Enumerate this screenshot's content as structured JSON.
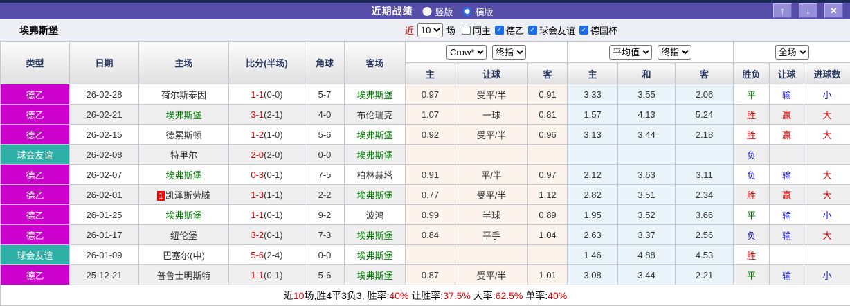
{
  "titlebar": {
    "title": "近期战绩",
    "radios": [
      {
        "label": "竖版",
        "checked": false
      },
      {
        "label": "横版",
        "checked": true
      }
    ],
    "buttons": {
      "up": "↑",
      "down": "↓",
      "close": "✕"
    }
  },
  "filterbar": {
    "team": "埃弗斯堡",
    "recent_label": "近",
    "recent_count": "10",
    "matches_label": "场",
    "checkboxes": [
      {
        "label": "同主",
        "checked": false
      },
      {
        "label": "德乙",
        "checked": true
      },
      {
        "label": "球会友谊",
        "checked": true
      },
      {
        "label": "德国杯",
        "checked": true
      }
    ]
  },
  "table": {
    "headers": {
      "type": "类型",
      "date": "日期",
      "home": "主场",
      "score": "比分(半场)",
      "corner": "角球",
      "away": "客场",
      "group1_select1": "Crow*",
      "group1_select2": "终指",
      "group2_select1": "平均值",
      "group2_select2": "终指",
      "group3_select": "全场",
      "sub": [
        "主",
        "让球",
        "客",
        "主",
        "和",
        "客",
        "胜负",
        "让球",
        "进球数"
      ]
    },
    "rows": [
      {
        "type": "德乙",
        "type_color": "magenta",
        "date": "26-02-28",
        "home": "荷尔斯泰因",
        "home_team": false,
        "home_badge": "",
        "score": "1-1",
        "half": "(0-0)",
        "corner": "5-7",
        "away": "埃弗斯堡",
        "away_team": true,
        "odds1": [
          "0.97",
          "受平/半",
          "0.91"
        ],
        "odds2": [
          "3.33",
          "3.55",
          "2.06"
        ],
        "result": [
          [
            "平",
            "g"
          ],
          [
            "输",
            "b"
          ],
          [
            "小",
            "b"
          ]
        ]
      },
      {
        "type": "德乙",
        "type_color": "magenta",
        "date": "26-02-21",
        "home": "埃弗斯堡",
        "home_team": true,
        "home_badge": "",
        "score": "3-1",
        "half": "(2-1)",
        "corner": "4-0",
        "away": "布伦瑞克",
        "away_team": false,
        "odds1": [
          "1.07",
          "一球",
          "0.81"
        ],
        "odds2": [
          "1.57",
          "4.13",
          "5.24"
        ],
        "result": [
          [
            "胜",
            "r"
          ],
          [
            "赢",
            "r"
          ],
          [
            "大",
            "r"
          ]
        ]
      },
      {
        "type": "德乙",
        "type_color": "magenta",
        "date": "26-02-15",
        "home": "德累斯顿",
        "home_team": false,
        "home_badge": "",
        "score": "1-2",
        "half": "(1-0)",
        "corner": "5-6",
        "away": "埃弗斯堡",
        "away_team": true,
        "odds1": [
          "0.92",
          "受平/半",
          "0.96"
        ],
        "odds2": [
          "3.13",
          "3.44",
          "2.18"
        ],
        "result": [
          [
            "胜",
            "r"
          ],
          [
            "赢",
            "r"
          ],
          [
            "大",
            "r"
          ]
        ]
      },
      {
        "type": "球会友谊",
        "type_color": "teal",
        "date": "26-02-08",
        "home": "特里尔",
        "home_team": false,
        "home_badge": "",
        "score": "2-0",
        "half": "(2-0)",
        "corner": "0-0",
        "away": "埃弗斯堡",
        "away_team": true,
        "odds1": [
          "",
          "",
          ""
        ],
        "odds2": [
          "",
          "",
          ""
        ],
        "result": [
          [
            "负",
            "b"
          ],
          [
            "",
            ""
          ],
          [
            "",
            ""
          ]
        ]
      },
      {
        "type": "德乙",
        "type_color": "magenta",
        "date": "26-02-07",
        "home": "埃弗斯堡",
        "home_team": true,
        "home_badge": "",
        "score": "0-3",
        "half": "(0-1)",
        "corner": "7-5",
        "away": "柏林赫塔",
        "away_team": false,
        "odds1": [
          "0.91",
          "平/半",
          "0.97"
        ],
        "odds2": [
          "2.12",
          "3.63",
          "3.11"
        ],
        "result": [
          [
            "负",
            "b"
          ],
          [
            "输",
            "b"
          ],
          [
            "大",
            "r"
          ]
        ]
      },
      {
        "type": "德乙",
        "type_color": "magenta",
        "date": "26-02-01",
        "home": "凯泽斯劳滕",
        "home_team": false,
        "home_badge": "1",
        "score": "1-3",
        "half": "(1-1)",
        "corner": "2-2",
        "away": "埃弗斯堡",
        "away_team": true,
        "odds1": [
          "0.77",
          "受平/半",
          "1.12"
        ],
        "odds2": [
          "2.82",
          "3.51",
          "2.34"
        ],
        "result": [
          [
            "胜",
            "r"
          ],
          [
            "赢",
            "r"
          ],
          [
            "大",
            "r"
          ]
        ]
      },
      {
        "type": "德乙",
        "type_color": "magenta",
        "date": "26-01-25",
        "home": "埃弗斯堡",
        "home_team": true,
        "home_badge": "",
        "score": "1-1",
        "half": "(0-1)",
        "corner": "9-2",
        "away": "波鸿",
        "away_team": false,
        "odds1": [
          "0.99",
          "半球",
          "0.89"
        ],
        "odds2": [
          "1.95",
          "3.52",
          "3.66"
        ],
        "result": [
          [
            "平",
            "g"
          ],
          [
            "输",
            "b"
          ],
          [
            "小",
            "b"
          ]
        ]
      },
      {
        "type": "德乙",
        "type_color": "magenta",
        "date": "26-01-17",
        "home": "纽伦堡",
        "home_team": false,
        "home_badge": "",
        "score": "3-2",
        "half": "(0-1)",
        "corner": "7-3",
        "away": "埃弗斯堡",
        "away_team": true,
        "odds1": [
          "0.84",
          "平手",
          "1.04"
        ],
        "odds2": [
          "2.63",
          "3.37",
          "2.56"
        ],
        "result": [
          [
            "负",
            "b"
          ],
          [
            "输",
            "b"
          ],
          [
            "大",
            "r"
          ]
        ]
      },
      {
        "type": "球会友谊",
        "type_color": "teal",
        "date": "26-01-09",
        "home": "巴塞尔(中)",
        "home_team": false,
        "home_badge": "",
        "score": "5-6",
        "half": "(2-4)",
        "corner": "0-0",
        "away": "埃弗斯堡",
        "away_team": true,
        "odds1": [
          "",
          "",
          ""
        ],
        "odds2": [
          "1.46",
          "4.88",
          "4.53"
        ],
        "result": [
          [
            "胜",
            "r"
          ],
          [
            "",
            ""
          ],
          [
            "",
            ""
          ]
        ]
      },
      {
        "type": "德乙",
        "type_color": "magenta",
        "date": "25-12-21",
        "home": "普鲁士明斯特",
        "home_team": false,
        "home_badge": "",
        "score": "1-1",
        "half": "(0-1)",
        "corner": "5-6",
        "away": "埃弗斯堡",
        "away_team": true,
        "odds1": [
          "0.87",
          "受平/半",
          "1.01"
        ],
        "odds2": [
          "3.08",
          "3.44",
          "2.21"
        ],
        "result": [
          [
            "平",
            "g"
          ],
          [
            "输",
            "b"
          ],
          [
            "小",
            "b"
          ]
        ]
      }
    ]
  },
  "summary": {
    "parts": [
      {
        "text": "近",
        "color": "k"
      },
      {
        "text": "10",
        "color": "r"
      },
      {
        "text": "场,胜4平3负3, 胜率:",
        "color": "k"
      },
      {
        "text": "40%",
        "color": "r"
      },
      {
        "text": " 让胜率:",
        "color": "k"
      },
      {
        "text": "37.5%",
        "color": "r"
      },
      {
        "text": " 大率:",
        "color": "k"
      },
      {
        "text": "62.5%",
        "color": "r"
      },
      {
        "text": " 单率:",
        "color": "k"
      },
      {
        "text": "40%",
        "color": "r"
      }
    ]
  },
  "colors": {
    "title_bar": "#554da8",
    "top_strip": "#1c2a57",
    "league_d2_badge": "#cc00cc",
    "league_friendly_badge": "#2fb0a6",
    "win_red": "#e00000",
    "lose_blue": "#1414d2",
    "draw_green": "#008000",
    "odds_group1_bg": "#fbf3ec",
    "odds_group2_bg": "#e8f3fa"
  }
}
